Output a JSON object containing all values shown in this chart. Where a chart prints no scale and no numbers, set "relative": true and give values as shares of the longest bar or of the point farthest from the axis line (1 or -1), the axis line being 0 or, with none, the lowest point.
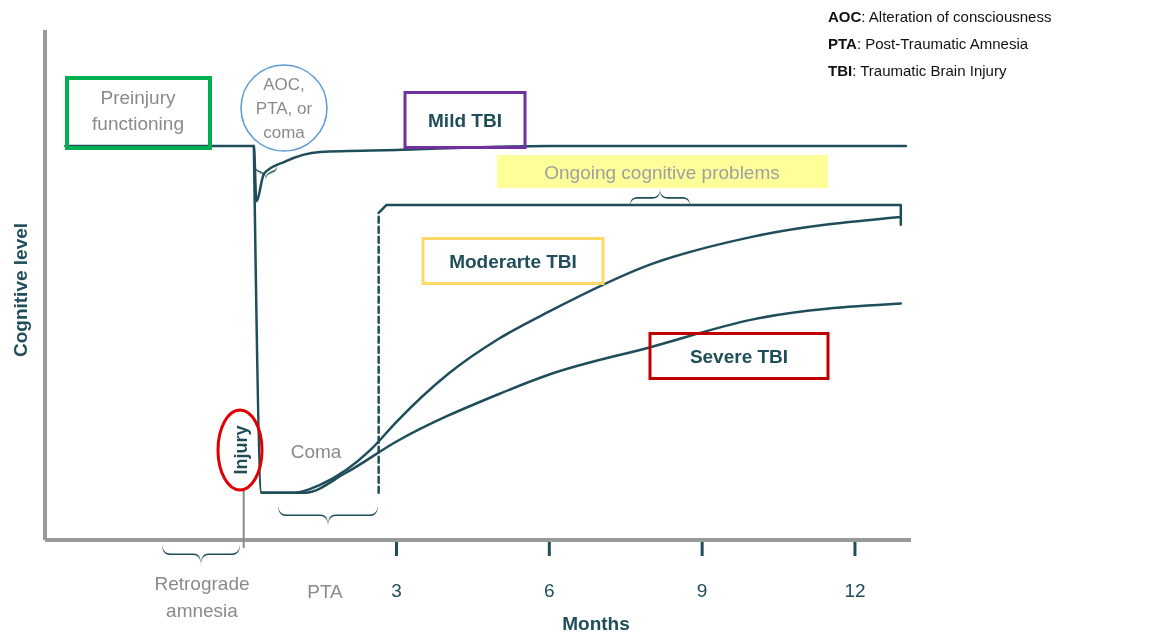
{
  "chart_data": {
    "type": "line",
    "relative": true,
    "xlabel": "Months",
    "ylabel": "Cognitive level",
    "xlim": [
      -3.9,
      13.1
    ],
    "xticks": [
      3,
      6,
      9,
      12
    ],
    "series": [
      {
        "name": "Mild TBI",
        "color": "#1f4e5a",
        "x": [
          -3.5,
          0.2,
          0.25,
          0.4,
          0.8,
          1.5,
          3,
          6,
          13
        ],
        "values": [
          1.0,
          1.0,
          0.86,
          0.93,
          0.96,
          0.985,
          0.99,
          1.0,
          1.0
        ]
      },
      {
        "name": "Moderarte TBI",
        "color": "#1f4e5a",
        "x": [
          0.35,
          1.0,
          1.5,
          2.5,
          3,
          4,
          5,
          6,
          8,
          10,
          12.9
        ],
        "values": [
          0.12,
          0.12,
          0.14,
          0.23,
          0.3,
          0.42,
          0.51,
          0.58,
          0.7,
          0.77,
          0.82
        ]
      },
      {
        "name": "Severe TBI",
        "color": "#1f4e5a",
        "x": [
          0.2,
          0.35,
          1.2,
          2,
          3,
          5,
          6,
          8,
          10,
          12.9
        ],
        "values": [
          1.0,
          0.12,
          0.12,
          0.17,
          0.25,
          0.37,
          0.42,
          0.49,
          0.56,
          0.6
        ]
      },
      {
        "color": "#1f4e5a",
        "line_style": "dashed",
        "x": [
          2.65,
          2.65
        ],
        "values": [
          0.12,
          0.83
        ]
      },
      {
        "color": "#1f4e5a",
        "x": [
          2.65,
          2.8,
          12.9,
          12.9
        ],
        "values": [
          0.83,
          0.85,
          0.85,
          0.8
        ]
      }
    ],
    "annotations": [
      "Preinjury\nfunctioning",
      "AOC,\nPTA, or\ncoma",
      "Ongoing cognitive problems",
      "Coma",
      "Injury",
      "PTA",
      "Retrograde\namnesia",
      "AOC: Alteration of consciousness",
      "PTA: Post-Traumatic Amnesia",
      "TBI: Traumatic Brain Injury"
    ]
  }
}
